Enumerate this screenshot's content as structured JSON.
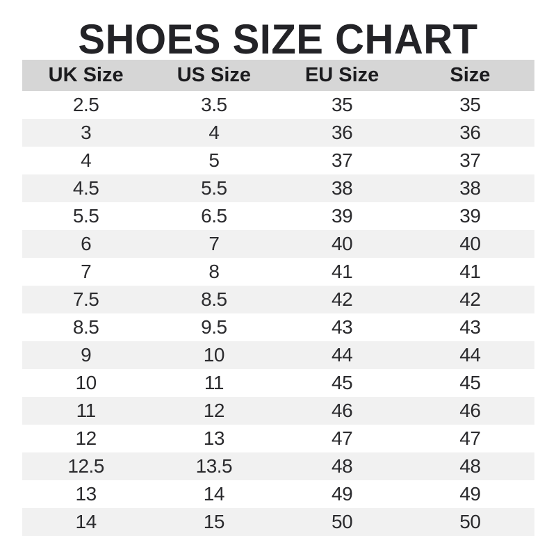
{
  "page": {
    "title": "SHOES SIZE CHART"
  },
  "colors": {
    "background": "#ffffff",
    "title_text": "#232327",
    "header_bg": "#d6d6d6",
    "row_alt_bg": "#f1f1f1",
    "cell_text": "#2b2b2e"
  },
  "chart_data": {
    "type": "table",
    "title": "SHOES SIZE CHART",
    "columns": [
      "UK Size",
      "US Size",
      "EU Size",
      "Size"
    ],
    "rows": [
      [
        "2.5",
        "3.5",
        "35",
        "35"
      ],
      [
        "3",
        "4",
        "36",
        "36"
      ],
      [
        "4",
        "5",
        "37",
        "37"
      ],
      [
        "4.5",
        "5.5",
        "38",
        "38"
      ],
      [
        "5.5",
        "6.5",
        "39",
        "39"
      ],
      [
        "6",
        "7",
        "40",
        "40"
      ],
      [
        "7",
        "8",
        "41",
        "41"
      ],
      [
        "7.5",
        "8.5",
        "42",
        "42"
      ],
      [
        "8.5",
        "9.5",
        "43",
        "43"
      ],
      [
        "9",
        "10",
        "44",
        "44"
      ],
      [
        "10",
        "11",
        "45",
        "45"
      ],
      [
        "11",
        "12",
        "46",
        "46"
      ],
      [
        "12",
        "13",
        "47",
        "47"
      ],
      [
        "12.5",
        "13.5",
        "48",
        "48"
      ],
      [
        "13",
        "14",
        "49",
        "49"
      ],
      [
        "14",
        "15",
        "50",
        "50"
      ]
    ],
    "layout": {
      "zebra_striping": true,
      "first_data_row_background": "white",
      "header_background": "gray"
    }
  }
}
